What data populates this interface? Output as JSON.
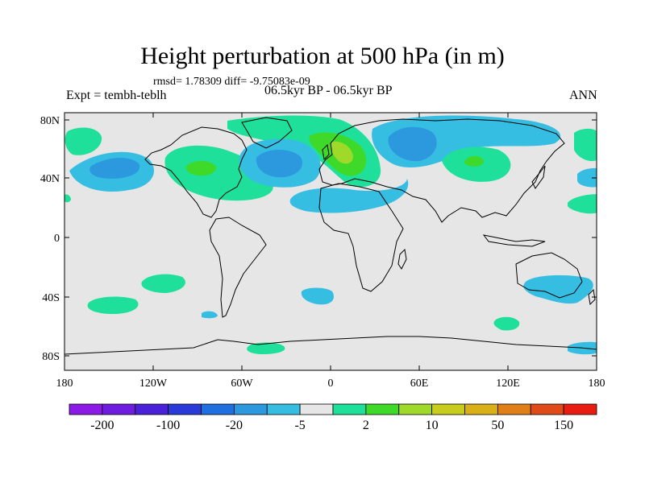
{
  "title": "Height perturbation at 500 hPa (in m)",
  "stats": "rmsd= 1.78309 diff= -9.75083e-09",
  "experiment": "Expt = tembh-teblh",
  "period": "06.5kyr BP - 06.5kyr BP",
  "season": "ANN",
  "lat_labels": [
    "80N",
    "40N",
    "0",
    "40S",
    "80S"
  ],
  "lon_labels": [
    "180",
    "120W",
    "60W",
    "0",
    "60E",
    "120E",
    "180"
  ],
  "colorbar": {
    "colors": [
      "#8c1ae6",
      "#6e1de0",
      "#4a20d9",
      "#2a3ad8",
      "#1f6fe0",
      "#2c99de",
      "#36bde2",
      "#e6e6e6",
      "#1fe09a",
      "#3fd92a",
      "#9fd92a",
      "#c8cc1c",
      "#d9b018",
      "#e07f18",
      "#e04a18",
      "#e81c10"
    ],
    "labels": [
      "-200",
      "-100",
      "-20",
      "-5",
      "2",
      "10",
      "50",
      "150"
    ]
  },
  "colors": {
    "ocean_bg": "#e6e6e6",
    "light_blue": "#36bde2",
    "mid_blue": "#2c99de",
    "light_green": "#1fe09a",
    "mid_green": "#3fd92a",
    "yellow_green": "#9fd92a"
  }
}
